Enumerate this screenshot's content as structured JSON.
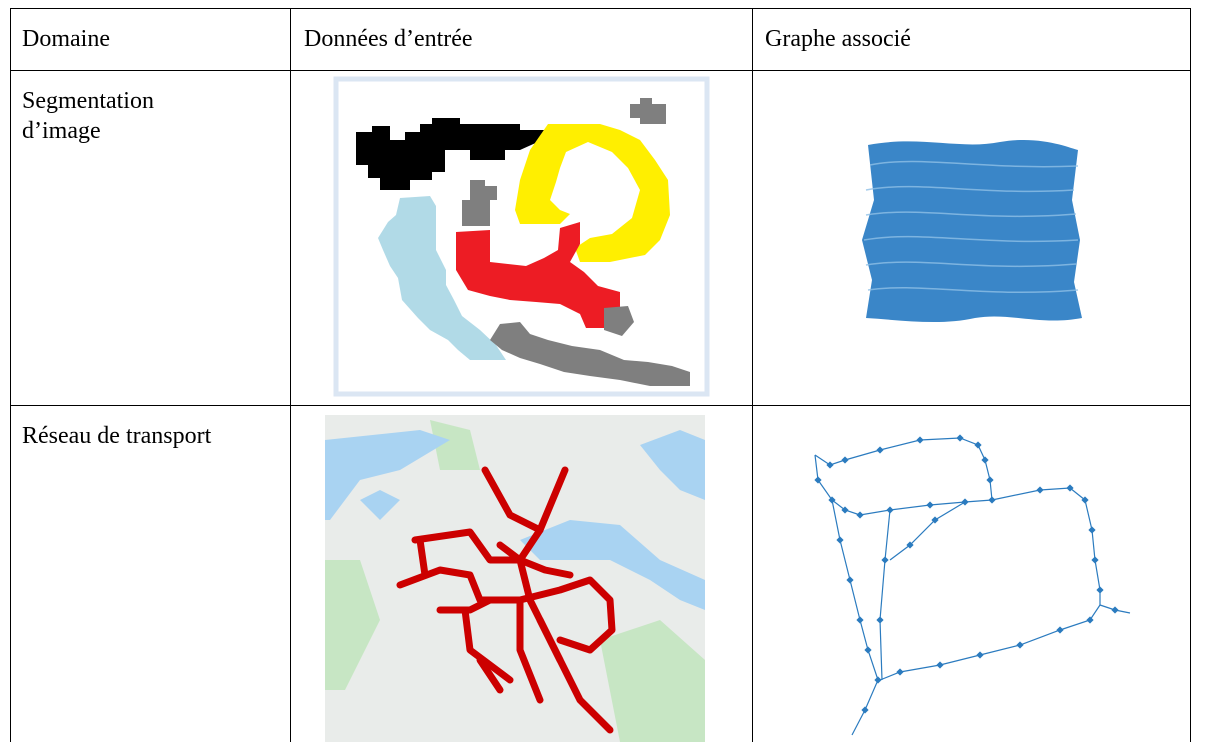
{
  "table": {
    "header": [
      "Domaine",
      "Données d’entrée",
      "Graphe associé"
    ],
    "rows": [
      [
        "Segmentation d’image"
      ],
      [
        "Réseau de transport"
      ]
    ]
  }
}
